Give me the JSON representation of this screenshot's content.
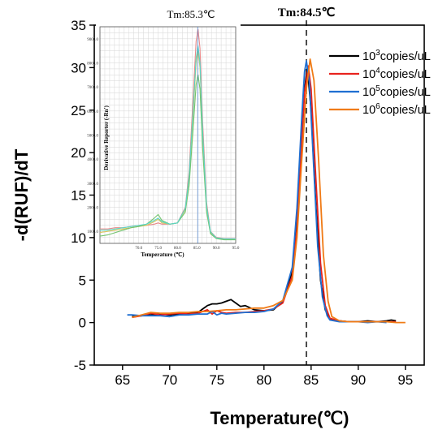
{
  "chart_data": [
    {
      "type": "line",
      "xlabel": "Temperature(℃)",
      "ylabel": "-d(RUF)/dT",
      "xlim": [
        62,
        97
      ],
      "ylim": [
        -5,
        35
      ],
      "xticks": [
        65,
        70,
        75,
        80,
        85,
        90,
        95
      ],
      "yticks": [
        -5,
        0,
        5,
        10,
        15,
        20,
        25,
        30,
        35
      ],
      "annotation": "Tm:84.5℃",
      "annotation_x": 84.5,
      "grid": false,
      "legend_position": "top-right",
      "series": [
        {
          "base": "10",
          "exp": "3",
          "unit": "copies/uL",
          "color": "#000000",
          "x": [
            66,
            67,
            68,
            69,
            70,
            71,
            72,
            73,
            73.5,
            74,
            74.5,
            75,
            75.5,
            76,
            76.5,
            77,
            77.5,
            78,
            79,
            80,
            81,
            82,
            83,
            83.5,
            84,
            84.3,
            84.6,
            85,
            85.5,
            86,
            86.5,
            87,
            88,
            89,
            90,
            91,
            92,
            93,
            93.5,
            94
          ],
          "y": [
            0.7,
            0.8,
            0.9,
            1.0,
            0.9,
            1.0,
            1.1,
            1.2,
            1.6,
            2.0,
            2.2,
            2.2,
            2.3,
            2.5,
            2.7,
            2.3,
            1.9,
            2.0,
            1.5,
            1.4,
            1.5,
            2.5,
            6.0,
            12.0,
            22.0,
            27.5,
            30.0,
            25.0,
            14.0,
            5.0,
            1.5,
            0.4,
            0.2,
            0.1,
            0.1,
            0.2,
            0.1,
            0.2,
            0.3,
            0.2
          ]
        },
        {
          "base": "10",
          "exp": "4",
          "unit": "copies/uL",
          "color": "#e8231e",
          "x": [
            66,
            67,
            68,
            69,
            70,
            71,
            72,
            73,
            74,
            74.5,
            75,
            75.5,
            76,
            77,
            78,
            79,
            80,
            81,
            82,
            83,
            83.5,
            84,
            84.3,
            84.7,
            85,
            85.5,
            86,
            86.5,
            87,
            88,
            89,
            90,
            91,
            92,
            93,
            94
          ],
          "y": [
            0.6,
            0.8,
            1.1,
            0.9,
            1.0,
            1.1,
            1.0,
            1.1,
            1.5,
            1.0,
            1.4,
            1.2,
            1.1,
            1.2,
            1.2,
            1.3,
            1.4,
            1.6,
            2.3,
            5.5,
            11.0,
            21.0,
            27.0,
            30.2,
            27.5,
            17.0,
            7.0,
            2.0,
            0.5,
            0.2,
            0.1,
            0.1,
            0.1,
            0.1,
            0.1,
            0.1
          ]
        },
        {
          "base": "10",
          "exp": "5",
          "unit": "copies/uL",
          "color": "#1f6fd1",
          "x": [
            65.5,
            66,
            67,
            68,
            69,
            70,
            71,
            72,
            73,
            74,
            74.5,
            75,
            75.5,
            76,
            77,
            78,
            79,
            80,
            81,
            82,
            83,
            83.5,
            84,
            84.3,
            84.5,
            84.8,
            85.2,
            85.7,
            86.2,
            86.7,
            87,
            88,
            89,
            90,
            91,
            92,
            93
          ],
          "y": [
            0.9,
            0.9,
            0.8,
            0.8,
            0.8,
            0.7,
            0.9,
            0.9,
            1.0,
            1.0,
            1.3,
            0.9,
            1.1,
            1.0,
            1.1,
            1.2,
            1.2,
            1.3,
            1.6,
            2.6,
            6.5,
            13.5,
            24.0,
            29.5,
            30.8,
            28.5,
            20.0,
            9.0,
            3.0,
            0.8,
            0.3,
            0.1,
            0.1,
            0.1,
            0.0,
            0.1,
            0.0
          ]
        },
        {
          "base": "10",
          "exp": "6",
          "unit": "copies/uL",
          "color": "#f07b16",
          "x": [
            66,
            67,
            68,
            69,
            70,
            71,
            72,
            73,
            74,
            75,
            76,
            77,
            78,
            79,
            80,
            81,
            82,
            83,
            83.5,
            84,
            84.5,
            84.9,
            85.3,
            85.8,
            86.3,
            86.8,
            87.2,
            88,
            89,
            90,
            91,
            92,
            93,
            94,
            95
          ],
          "y": [
            0.6,
            0.9,
            1.2,
            1.1,
            1.1,
            1.2,
            1.2,
            1.3,
            1.3,
            1.4,
            1.5,
            1.5,
            1.6,
            1.7,
            1.7,
            2.0,
            2.6,
            5.0,
            10.0,
            19.0,
            27.5,
            31.0,
            28.5,
            19.0,
            8.0,
            2.5,
            0.7,
            0.2,
            0.1,
            0.1,
            0.1,
            0.1,
            0.1,
            0.0,
            0.0
          ]
        }
      ]
    },
    {
      "type": "line",
      "title": "Tm:85.3℃",
      "xlabel": "Temperature (℃)",
      "ylabel": "Derivative Reporter (-Rn')",
      "xlim": [
        60,
        95
      ],
      "ylim": [
        500,
        9500
      ],
      "xticks": [
        70.0,
        75.0,
        80.0,
        85.0,
        90.0,
        95.0
      ],
      "xtick_labels": [
        "70.0",
        "75.0",
        "80.0",
        "85.0",
        "90.0",
        "95.0"
      ],
      "yticks": [
        1000,
        2000,
        3000,
        4000,
        5000,
        6000,
        7000,
        8000,
        9000
      ],
      "ytick_labels": [
        "1000.0",
        "2000.0",
        "3000.0",
        "4000.0",
        "5000.0",
        "6000.0",
        "7000.0",
        "8000.0",
        "9000.0"
      ],
      "annotation_x": 85.3,
      "grid": true,
      "series": [
        {
          "color": "#e88a8a",
          "x": [
            60,
            62,
            64,
            66,
            68,
            70,
            72,
            74,
            75,
            76,
            78,
            80,
            82,
            83,
            84,
            84.8,
            85.3,
            85.8,
            86.5,
            87.5,
            88.5,
            90,
            92,
            95
          ],
          "y": [
            1100,
            1100,
            1150,
            1150,
            1200,
            1250,
            1250,
            1300,
            1350,
            1300,
            1300,
            1350,
            2000,
            3500,
            6500,
            8900,
            9400,
            8600,
            5500,
            2200,
            1000,
            750,
            700,
            700
          ]
        },
        {
          "color": "#d9c25a",
          "x": [
            60,
            62,
            64,
            66,
            68,
            70,
            72,
            74,
            75,
            76,
            78,
            80,
            82,
            83,
            84,
            84.8,
            85.3,
            85.8,
            86.5,
            87.5,
            88.5,
            90,
            92,
            95
          ],
          "y": [
            950,
            1000,
            1050,
            1100,
            1150,
            1200,
            1250,
            1400,
            1500,
            1350,
            1300,
            1350,
            1900,
            3200,
            5800,
            8000,
            8500,
            7800,
            5000,
            2000,
            950,
            720,
            680,
            680
          ]
        },
        {
          "color": "#73c46e",
          "x": [
            60,
            62,
            64,
            66,
            68,
            70,
            72,
            74,
            75,
            76,
            78,
            80,
            82,
            83,
            84,
            84.8,
            85.3,
            85.8,
            86.5,
            87.5,
            88.5,
            90,
            92,
            95
          ],
          "y": [
            800,
            850,
            950,
            1050,
            1150,
            1200,
            1300,
            1550,
            1700,
            1450,
            1300,
            1350,
            1800,
            2900,
            5200,
            7100,
            7500,
            6900,
            4400,
            1800,
            900,
            700,
            650,
            650
          ]
        },
        {
          "color": "#5ad6c8",
          "x": [
            60,
            62,
            64,
            66,
            68,
            70,
            72,
            74,
            75,
            76,
            78,
            80,
            82,
            83,
            84,
            84.8,
            85.3,
            85.8,
            86.5,
            87.5,
            88.5,
            90,
            92,
            95
          ],
          "y": [
            1050,
            1050,
            1100,
            1150,
            1200,
            1250,
            1300,
            1450,
            1550,
            1400,
            1300,
            1350,
            1950,
            3300,
            6000,
            8200,
            8700,
            8000,
            5100,
            2050,
            980,
            730,
            690,
            690
          ]
        }
      ]
    }
  ]
}
